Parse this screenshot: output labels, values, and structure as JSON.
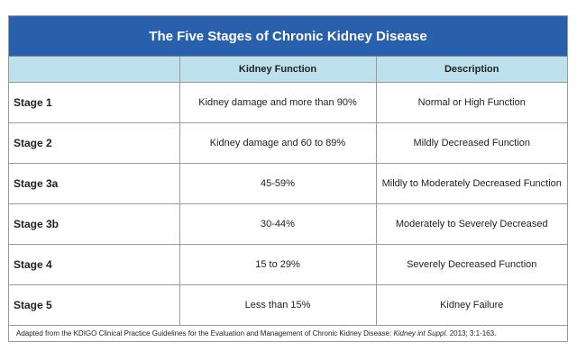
{
  "title": "The Five Stages of Chronic Kidney Disease",
  "columns": [
    "",
    "Kidney Function",
    "Description"
  ],
  "rows": [
    {
      "stage": "Stage 1",
      "function": "Kidney damage and more than 90%",
      "description": "Normal or High Function"
    },
    {
      "stage": "Stage 2",
      "function": "Kidney damage and 60 to 89%",
      "description": "Mildly Decreased Function"
    },
    {
      "stage": "Stage 3a",
      "function": "45-59%",
      "description": "Mildly to Moderately Decreased Function"
    },
    {
      "stage": "Stage 3b",
      "function": "30-44%",
      "description": "Moderately to Severely Decreased"
    },
    {
      "stage": "Stage 4",
      "function": "15 to 29%",
      "description": "Severely Decreased Function"
    },
    {
      "stage": "Stage 5",
      "function": "Less than 15%",
      "description": "Kidney Failure"
    }
  ],
  "footnote": {
    "prefix": "Adapted from the KDIGO Clinical Practice Guidelines for the Evaluation and Management of Chronic Kidney Disease: ",
    "journal": "Kidney int Suppl.",
    "suffix": " 2013; 3:1-163."
  },
  "colors": {
    "title_bg": "#2960ad",
    "header_bg": "#bde1ec",
    "border": "#9a9a9a"
  }
}
